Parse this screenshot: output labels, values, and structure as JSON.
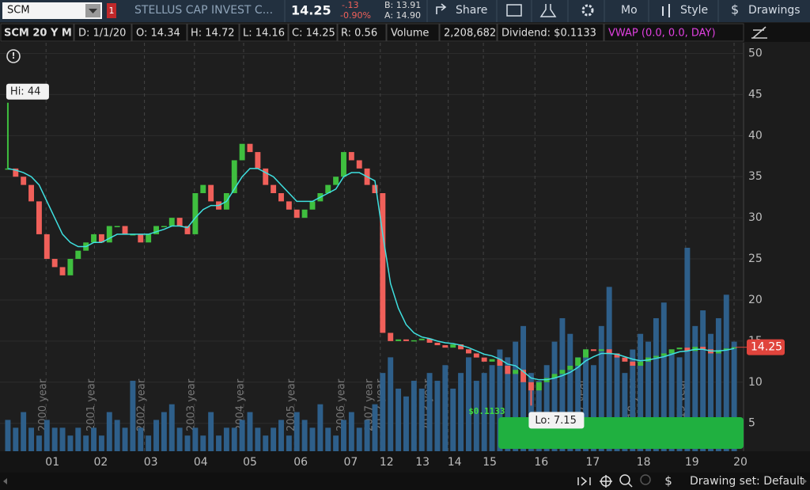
{
  "toolbar": {
    "symbol": "SCM",
    "alert_badge": "1",
    "company": "STELLUS CAP INVEST C...",
    "last": "14.25",
    "change": "-.13",
    "change_pct": "-0.90%",
    "bid": "B: 13.91",
    "ask": "A: 14.90",
    "share": "Share",
    "mode": "Mo",
    "style": "Style",
    "drawings": "Drawings"
  },
  "info_bar": {
    "symbol_period": "SCM 20 Y M",
    "date": "D: 1/1/20",
    "open": "O: 14.34",
    "high": "H: 14.72",
    "low": "L: 14.16",
    "close": "C: 14.25",
    "range": "R: 0.56",
    "volume_label": "Volume",
    "volume": "2,208,682",
    "dividend": "Dividend: $0.1133",
    "vwap": "VWAP (0.0, 0.0, DAY)"
  },
  "chart_data": {
    "type": "candlestick",
    "xlim": [
      -0.5,
      94
    ],
    "ylim": [
      1.6,
      51.3
    ],
    "yticks": [
      5,
      10,
      15,
      20,
      25,
      30,
      35,
      40,
      45,
      50
    ],
    "xticks": [
      {
        "value": 5.7,
        "label": "01"
      },
      {
        "value": 11.9,
        "label": "02"
      },
      {
        "value": 18.3,
        "label": "03"
      },
      {
        "value": 24.7,
        "label": "04"
      },
      {
        "value": 31.0,
        "label": "05"
      },
      {
        "value": 37.5,
        "label": "06"
      },
      {
        "value": 43.9,
        "label": "07"
      },
      {
        "value": 48.5,
        "label": "12"
      },
      {
        "value": 53.1,
        "label": "13"
      },
      {
        "value": 57.2,
        "label": "14"
      },
      {
        "value": 61.7,
        "label": "15"
      },
      {
        "value": 68.3,
        "label": "16"
      },
      {
        "value": 74.9,
        "label": "17"
      },
      {
        "value": 81.4,
        "label": "18"
      },
      {
        "value": 87.6,
        "label": "19"
      },
      {
        "value": 93.8,
        "label": "20"
      }
    ],
    "year_labels": [
      {
        "value": 4.5,
        "label": "2000 year"
      },
      {
        "value": 10.7,
        "label": "2001 year"
      },
      {
        "value": 17.1,
        "label": "2002 year"
      },
      {
        "value": 23.5,
        "label": "2003 year"
      },
      {
        "value": 29.8,
        "label": "2004 year"
      },
      {
        "value": 36.3,
        "label": "2005 year"
      },
      {
        "value": 42.7,
        "label": "2006 year"
      },
      {
        "value": 46.3,
        "label": "2007 year"
      },
      {
        "value": 47.7,
        "label": "2012 year"
      },
      {
        "value": 53.8,
        "label": "2013 year"
      },
      {
        "value": 73.5,
        "label": "2017 year"
      },
      {
        "value": 80.0,
        "label": "2018 year"
      },
      {
        "value": 86.3,
        "label": "2019 year"
      }
    ],
    "close": [
      36,
      35,
      34,
      32,
      28,
      25,
      24,
      23,
      25,
      26,
      27,
      28,
      27,
      29,
      29,
      28,
      28,
      27,
      28,
      29,
      29,
      30,
      29,
      28,
      33,
      34,
      32,
      31,
      33,
      37,
      39,
      38,
      36,
      34,
      33,
      32,
      31,
      30,
      31,
      32,
      33,
      34,
      35,
      38,
      37,
      36,
      34,
      33,
      16,
      15,
      15.2,
      15,
      15.1,
      15.3,
      14.8,
      14.5,
      14.2,
      14.6,
      14,
      13.5,
      13,
      12.5,
      12.8,
      12,
      11,
      11.5,
      10,
      9,
      10,
      10.5,
      11,
      11.5,
      12,
      13,
      14,
      13.8,
      14,
      13.5,
      13,
      12.5,
      12,
      12.5,
      13,
      13.2,
      13.5,
      14,
      14.2,
      13.8,
      14.3,
      14,
      13.5,
      13.9,
      14.1,
      14.25
    ],
    "moving_average": [
      36,
      35.8,
      35.5,
      35,
      34,
      32,
      30,
      28,
      27,
      26.5,
      26.5,
      27,
      27,
      27.5,
      28,
      28,
      28,
      28,
      28,
      28.3,
      28.6,
      29,
      29,
      28.8,
      30,
      31,
      31.5,
      31.5,
      32,
      33.5,
      35,
      36,
      36,
      35.5,
      35,
      34,
      33,
      32,
      32,
      32,
      32.5,
      33,
      33.5,
      35,
      35.5,
      35.5,
      35,
      34.5,
      28,
      22,
      19,
      17,
      16,
      15.5,
      15.3,
      15,
      14.8,
      14.7,
      14.5,
      14.2,
      13.8,
      13.4,
      13.2,
      12.8,
      12.2,
      12,
      11.3,
      10.5,
      10.3,
      10.3,
      10.5,
      10.8,
      11.2,
      11.8,
      12.6,
      13.1,
      13.5,
      13.5,
      13.4,
      13.1,
      12.8,
      12.6,
      12.7,
      12.9,
      13.1,
      13.4,
      13.7,
      13.8,
      14,
      14,
      13.8,
      13.8,
      13.9,
      14.1
    ],
    "volume": [
      4,
      3,
      5,
      3,
      2,
      4,
      3,
      3,
      2,
      3,
      2,
      3,
      2,
      5,
      4,
      3,
      9,
      3,
      2,
      4,
      5,
      6,
      3,
      2,
      3,
      2,
      5,
      2,
      3,
      3,
      4,
      5,
      3,
      2,
      3,
      4,
      2,
      5,
      4,
      3,
      6,
      3,
      2,
      4,
      5,
      3,
      4,
      6,
      10,
      12,
      8,
      7,
      9,
      8,
      10,
      9,
      11,
      8,
      10,
      12,
      9,
      10,
      11,
      13,
      12,
      14,
      16,
      10,
      9,
      11,
      14,
      17,
      15,
      12,
      13,
      11,
      16,
      21,
      12,
      10,
      13,
      15,
      14,
      17,
      19,
      13,
      12,
      26,
      16,
      18,
      15,
      17,
      20,
      14
    ],
    "up_color": "#3fbf3f",
    "down_color": "#f0605a",
    "ma_color": "#3fe0e0",
    "volume_color": "#2e5f8a",
    "high_label": {
      "index": 0,
      "value": 44,
      "label": "Hi: 44"
    },
    "low_label": {
      "index": 67,
      "value": 7.15,
      "label": "Lo: 7.15"
    },
    "last_price": {
      "value": 14.25,
      "label": "14.25"
    },
    "dividend_label": {
      "index": 61,
      "label": "$0.1133"
    }
  },
  "footer": {
    "drawing_set": "Drawing set: Default"
  }
}
